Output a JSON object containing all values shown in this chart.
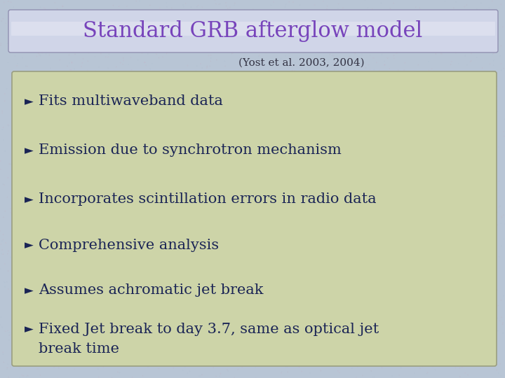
{
  "title": "Standard GRB afterglow model",
  "subtitle": "(Yost et al. 2003, 2004)",
  "title_color": "#7744BB",
  "subtitle_color": "#333344",
  "background_color": "#B8C5D5",
  "title_box_facecolor": "#D0D5E8",
  "title_box_edge": "#9090B0",
  "content_box_color": "#CDD4A8",
  "content_box_edge": "#9A9E80",
  "bullet_color": "#1A2455",
  "bullet_text_color": "#1A2455",
  "bullet_char": "►",
  "bullets": [
    "Fits multiwaveband data",
    "Emission due to synchrotron mechanism",
    "Incorporates scintillation errors in radio data",
    "Comprehensive analysis",
    "Assumes achromatic jet break",
    "Fixed Jet break to day 3.7, same as optical jet"
  ],
  "last_bullet_line2": "break time",
  "title_fontsize": 22,
  "subtitle_fontsize": 11,
  "bullet_fontsize": 15
}
